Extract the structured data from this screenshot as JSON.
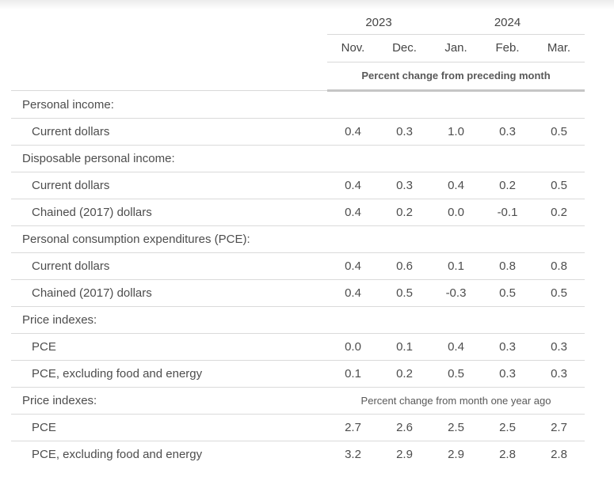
{
  "colors": {
    "text": "#4d4d4d",
    "header_text": "#454545",
    "note_text": "#595959",
    "thin_rule": "#d9d9d9",
    "thick_rule": "#c6c6c6",
    "background": "#ffffff"
  },
  "chart_data": {
    "type": "table",
    "title": "",
    "years": [
      {
        "label": "2023",
        "months_spanned": 2
      },
      {
        "label": "2024",
        "months_spanned": 3
      }
    ],
    "months": [
      "Nov.",
      "Dec.",
      "Jan.",
      "Feb.",
      "Mar."
    ],
    "unit_top": "Percent change from preceding month",
    "unit_bottom": "Percent change from month one year ago",
    "rows": [
      {
        "type": "section",
        "label": "Personal income:"
      },
      {
        "type": "data",
        "label": "Current dollars",
        "values": [
          "0.4",
          "0.3",
          "1.0",
          "0.3",
          "0.5"
        ]
      },
      {
        "type": "section",
        "label": "Disposable personal income:"
      },
      {
        "type": "data",
        "label": "Current dollars",
        "values": [
          "0.4",
          "0.3",
          "0.4",
          "0.2",
          "0.5"
        ]
      },
      {
        "type": "data",
        "label": "Chained (2017) dollars",
        "values": [
          "0.4",
          "0.2",
          "0.0",
          "-0.1",
          "0.2"
        ]
      },
      {
        "type": "section",
        "label": "Personal consumption expenditures (PCE):"
      },
      {
        "type": "data",
        "label": "Current dollars",
        "values": [
          "0.4",
          "0.6",
          "0.1",
          "0.8",
          "0.8"
        ]
      },
      {
        "type": "data",
        "label": "Chained (2017) dollars",
        "values": [
          "0.4",
          "0.5",
          "-0.3",
          "0.5",
          "0.5"
        ]
      },
      {
        "type": "section",
        "label": "Price indexes:"
      },
      {
        "type": "data",
        "label": "PCE",
        "values": [
          "0.0",
          "0.1",
          "0.4",
          "0.3",
          "0.3"
        ]
      },
      {
        "type": "data",
        "label": "PCE, excluding food and energy",
        "values": [
          "0.1",
          "0.2",
          "0.5",
          "0.3",
          "0.3"
        ]
      },
      {
        "type": "section-note",
        "label": "Price indexes:"
      },
      {
        "type": "data",
        "label": "PCE",
        "values": [
          "2.7",
          "2.6",
          "2.5",
          "2.5",
          "2.7"
        ]
      },
      {
        "type": "data",
        "label": "PCE, excluding food and energy",
        "values": [
          "3.2",
          "2.9",
          "2.9",
          "2.8",
          "2.8"
        ]
      }
    ]
  }
}
